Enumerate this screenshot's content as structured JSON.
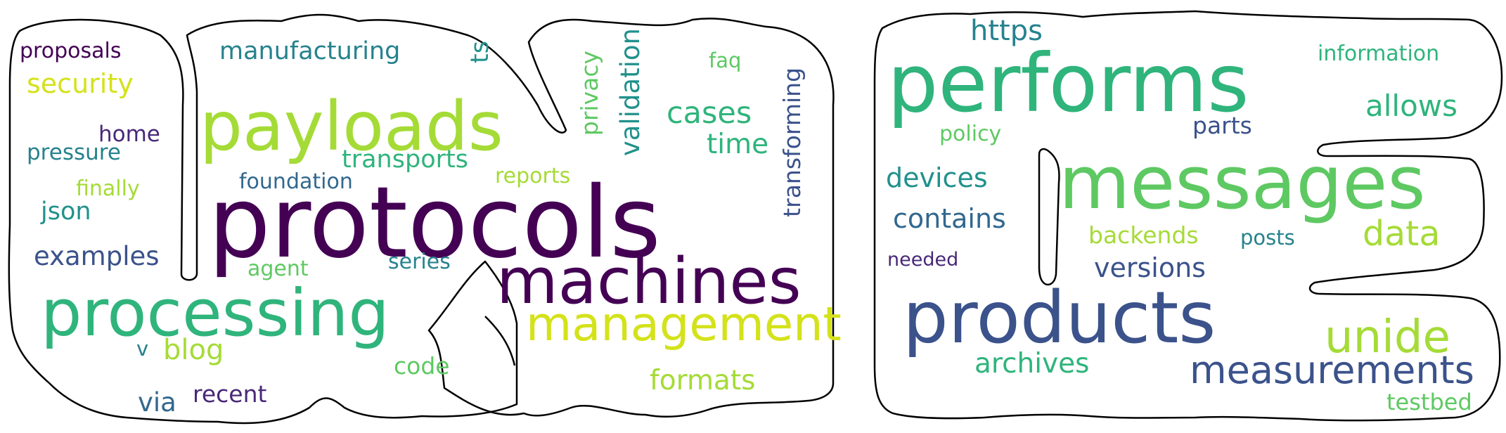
{
  "colors": {
    "c1": "#440154",
    "c2": "#3b528b",
    "c3": "#21918c",
    "c4": "#2fb47c",
    "c5": "#5ec962",
    "c6": "#a5db36",
    "c7": "#d4e21a",
    "c8": "#482878",
    "c9": "#31688e",
    "c10": "#26828e",
    "outline": "#000000",
    "background": "#ffffff"
  },
  "cloud_left": {
    "w01": "proposals",
    "w02": "security",
    "w03": "manufacturing",
    "w04": "ts",
    "w05": "validation",
    "w06": "faq",
    "w07": "privacy",
    "w08": "payloads",
    "w09": "cases",
    "w10": "transforming",
    "w11": "home",
    "w12": "pressure",
    "w13": "time",
    "w14": "transports",
    "w15": "reports",
    "w16": "finally",
    "w17": "foundation",
    "w18": "protocols",
    "w19": "json",
    "w20": "examples",
    "w21": "agent",
    "w22": "series",
    "w23": "machines",
    "w24": "processing",
    "w25": "management",
    "w26": "v",
    "w27": "blog",
    "w28": "code",
    "w29": "formats",
    "w30": "recent",
    "w31": "via"
  },
  "cloud_right": {
    "w01": "https",
    "w02": "information",
    "w03": "performs",
    "w04": "allows",
    "w05": "parts",
    "w06": "policy",
    "w07": "devices",
    "w08": "messages",
    "w09": "contains",
    "w10": "backends",
    "w11": "posts",
    "w12": "data",
    "w13": "needed",
    "w14": "versions",
    "w15": "products",
    "w16": "unide",
    "w17": "archives",
    "w18": "measurements",
    "w19": "testbed"
  }
}
